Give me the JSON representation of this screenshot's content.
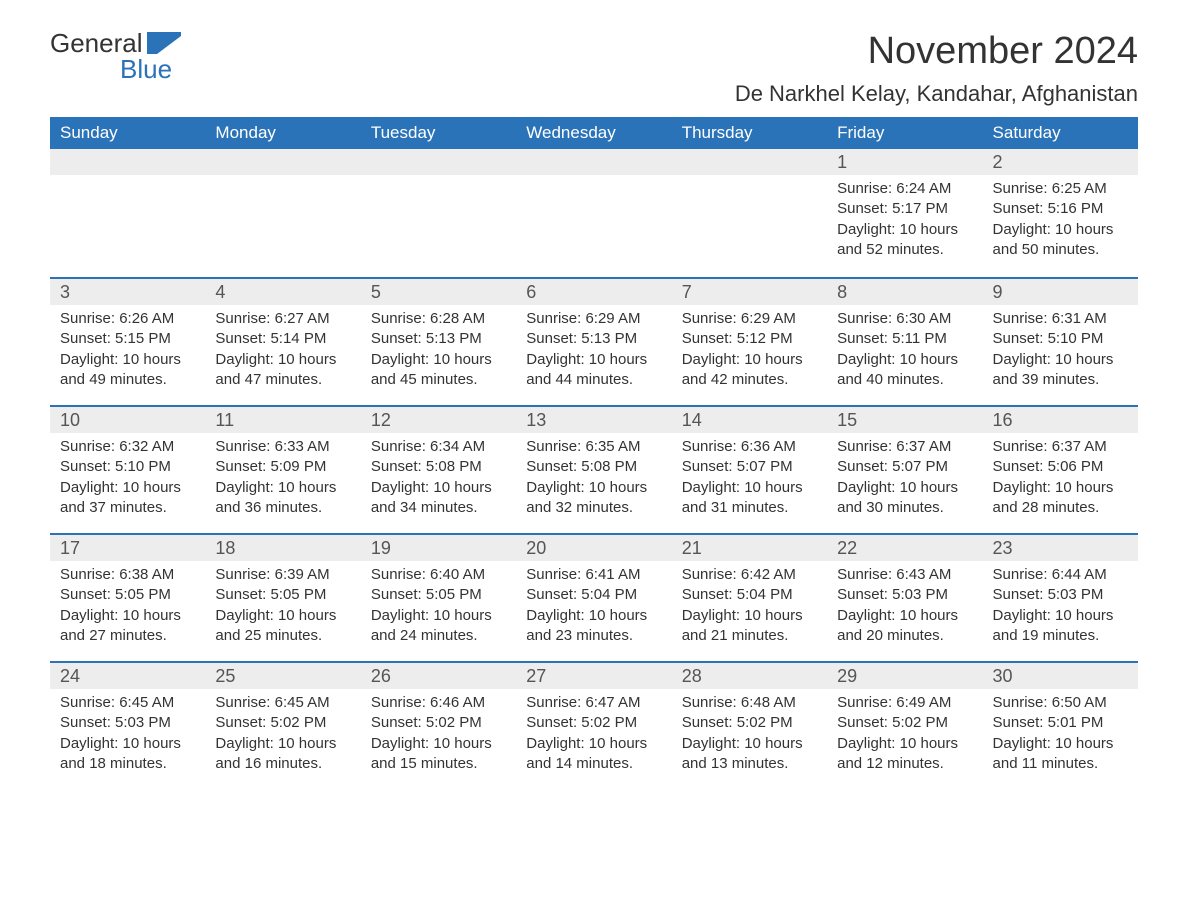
{
  "logo": {
    "word1": "General",
    "word2": "Blue"
  },
  "title": "November 2024",
  "location": "De Narkhel Kelay, Kandahar, Afghanistan",
  "colors": {
    "header_bg": "#2a73b8",
    "header_text": "#ffffff",
    "daynum_bg": "#ededed",
    "border_top": "#2a73b8",
    "text": "#333333",
    "logo_blue": "#2a73b8"
  },
  "weekday_headers": [
    "Sunday",
    "Monday",
    "Tuesday",
    "Wednesday",
    "Thursday",
    "Friday",
    "Saturday"
  ],
  "weeks": [
    [
      null,
      null,
      null,
      null,
      null,
      {
        "day": "1",
        "sunrise": "Sunrise: 6:24 AM",
        "sunset": "Sunset: 5:17 PM",
        "daylight": "Daylight: 10 hours and 52 minutes."
      },
      {
        "day": "2",
        "sunrise": "Sunrise: 6:25 AM",
        "sunset": "Sunset: 5:16 PM",
        "daylight": "Daylight: 10 hours and 50 minutes."
      }
    ],
    [
      {
        "day": "3",
        "sunrise": "Sunrise: 6:26 AM",
        "sunset": "Sunset: 5:15 PM",
        "daylight": "Daylight: 10 hours and 49 minutes."
      },
      {
        "day": "4",
        "sunrise": "Sunrise: 6:27 AM",
        "sunset": "Sunset: 5:14 PM",
        "daylight": "Daylight: 10 hours and 47 minutes."
      },
      {
        "day": "5",
        "sunrise": "Sunrise: 6:28 AM",
        "sunset": "Sunset: 5:13 PM",
        "daylight": "Daylight: 10 hours and 45 minutes."
      },
      {
        "day": "6",
        "sunrise": "Sunrise: 6:29 AM",
        "sunset": "Sunset: 5:13 PM",
        "daylight": "Daylight: 10 hours and 44 minutes."
      },
      {
        "day": "7",
        "sunrise": "Sunrise: 6:29 AM",
        "sunset": "Sunset: 5:12 PM",
        "daylight": "Daylight: 10 hours and 42 minutes."
      },
      {
        "day": "8",
        "sunrise": "Sunrise: 6:30 AM",
        "sunset": "Sunset: 5:11 PM",
        "daylight": "Daylight: 10 hours and 40 minutes."
      },
      {
        "day": "9",
        "sunrise": "Sunrise: 6:31 AM",
        "sunset": "Sunset: 5:10 PM",
        "daylight": "Daylight: 10 hours and 39 minutes."
      }
    ],
    [
      {
        "day": "10",
        "sunrise": "Sunrise: 6:32 AM",
        "sunset": "Sunset: 5:10 PM",
        "daylight": "Daylight: 10 hours and 37 minutes."
      },
      {
        "day": "11",
        "sunrise": "Sunrise: 6:33 AM",
        "sunset": "Sunset: 5:09 PM",
        "daylight": "Daylight: 10 hours and 36 minutes."
      },
      {
        "day": "12",
        "sunrise": "Sunrise: 6:34 AM",
        "sunset": "Sunset: 5:08 PM",
        "daylight": "Daylight: 10 hours and 34 minutes."
      },
      {
        "day": "13",
        "sunrise": "Sunrise: 6:35 AM",
        "sunset": "Sunset: 5:08 PM",
        "daylight": "Daylight: 10 hours and 32 minutes."
      },
      {
        "day": "14",
        "sunrise": "Sunrise: 6:36 AM",
        "sunset": "Sunset: 5:07 PM",
        "daylight": "Daylight: 10 hours and 31 minutes."
      },
      {
        "day": "15",
        "sunrise": "Sunrise: 6:37 AM",
        "sunset": "Sunset: 5:07 PM",
        "daylight": "Daylight: 10 hours and 30 minutes."
      },
      {
        "day": "16",
        "sunrise": "Sunrise: 6:37 AM",
        "sunset": "Sunset: 5:06 PM",
        "daylight": "Daylight: 10 hours and 28 minutes."
      }
    ],
    [
      {
        "day": "17",
        "sunrise": "Sunrise: 6:38 AM",
        "sunset": "Sunset: 5:05 PM",
        "daylight": "Daylight: 10 hours and 27 minutes."
      },
      {
        "day": "18",
        "sunrise": "Sunrise: 6:39 AM",
        "sunset": "Sunset: 5:05 PM",
        "daylight": "Daylight: 10 hours and 25 minutes."
      },
      {
        "day": "19",
        "sunrise": "Sunrise: 6:40 AM",
        "sunset": "Sunset: 5:05 PM",
        "daylight": "Daylight: 10 hours and 24 minutes."
      },
      {
        "day": "20",
        "sunrise": "Sunrise: 6:41 AM",
        "sunset": "Sunset: 5:04 PM",
        "daylight": "Daylight: 10 hours and 23 minutes."
      },
      {
        "day": "21",
        "sunrise": "Sunrise: 6:42 AM",
        "sunset": "Sunset: 5:04 PM",
        "daylight": "Daylight: 10 hours and 21 minutes."
      },
      {
        "day": "22",
        "sunrise": "Sunrise: 6:43 AM",
        "sunset": "Sunset: 5:03 PM",
        "daylight": "Daylight: 10 hours and 20 minutes."
      },
      {
        "day": "23",
        "sunrise": "Sunrise: 6:44 AM",
        "sunset": "Sunset: 5:03 PM",
        "daylight": "Daylight: 10 hours and 19 minutes."
      }
    ],
    [
      {
        "day": "24",
        "sunrise": "Sunrise: 6:45 AM",
        "sunset": "Sunset: 5:03 PM",
        "daylight": "Daylight: 10 hours and 18 minutes."
      },
      {
        "day": "25",
        "sunrise": "Sunrise: 6:45 AM",
        "sunset": "Sunset: 5:02 PM",
        "daylight": "Daylight: 10 hours and 16 minutes."
      },
      {
        "day": "26",
        "sunrise": "Sunrise: 6:46 AM",
        "sunset": "Sunset: 5:02 PM",
        "daylight": "Daylight: 10 hours and 15 minutes."
      },
      {
        "day": "27",
        "sunrise": "Sunrise: 6:47 AM",
        "sunset": "Sunset: 5:02 PM",
        "daylight": "Daylight: 10 hours and 14 minutes."
      },
      {
        "day": "28",
        "sunrise": "Sunrise: 6:48 AM",
        "sunset": "Sunset: 5:02 PM",
        "daylight": "Daylight: 10 hours and 13 minutes."
      },
      {
        "day": "29",
        "sunrise": "Sunrise: 6:49 AM",
        "sunset": "Sunset: 5:02 PM",
        "daylight": "Daylight: 10 hours and 12 minutes."
      },
      {
        "day": "30",
        "sunrise": "Sunrise: 6:50 AM",
        "sunset": "Sunset: 5:01 PM",
        "daylight": "Daylight: 10 hours and 11 minutes."
      }
    ]
  ]
}
